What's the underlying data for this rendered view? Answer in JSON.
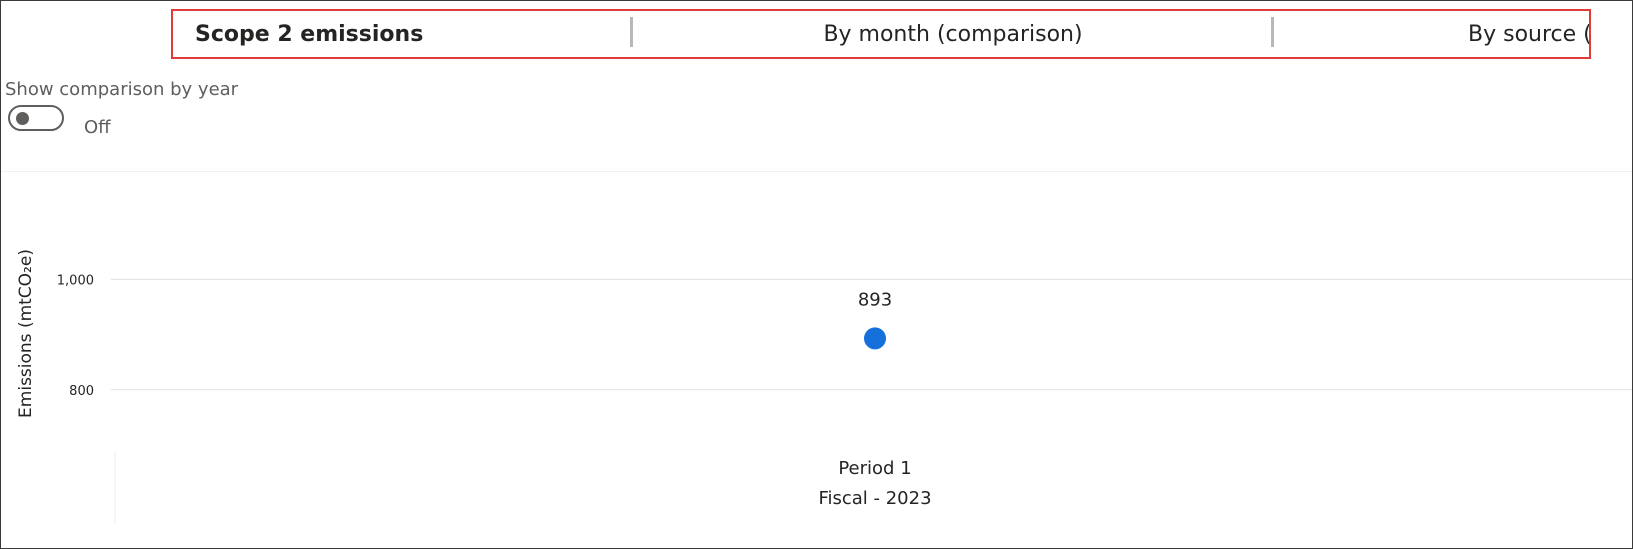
{
  "tabs": [
    {
      "label": "Scope 2 emissions",
      "active": true
    },
    {
      "label": "By month (comparison)",
      "active": false
    },
    {
      "label": "By source (line",
      "active": false
    }
  ],
  "toggle": {
    "label": "Show comparison by year",
    "state_text": "Off",
    "on": false
  },
  "colors": {
    "accent": "#1570dc",
    "tab_highlight_border": "#e03a3a",
    "text": "#252423",
    "muted": "#605e5c",
    "grid": "#e1e1e1"
  },
  "chart_data": {
    "type": "scatter",
    "ylabel": "Emissions (mtCO₂e)",
    "xlabel": "",
    "ylim": [
      680,
      1160
    ],
    "yticks": [
      {
        "value": 800,
        "label": "800"
      },
      {
        "value": 1000,
        "label": "1,000"
      }
    ],
    "grid": true,
    "categories": [
      {
        "primary": "Period 1",
        "secondary": "Fiscal - 2023"
      }
    ],
    "series": [
      {
        "values": [
          893
        ],
        "data_labels": [
          "893"
        ]
      }
    ]
  }
}
